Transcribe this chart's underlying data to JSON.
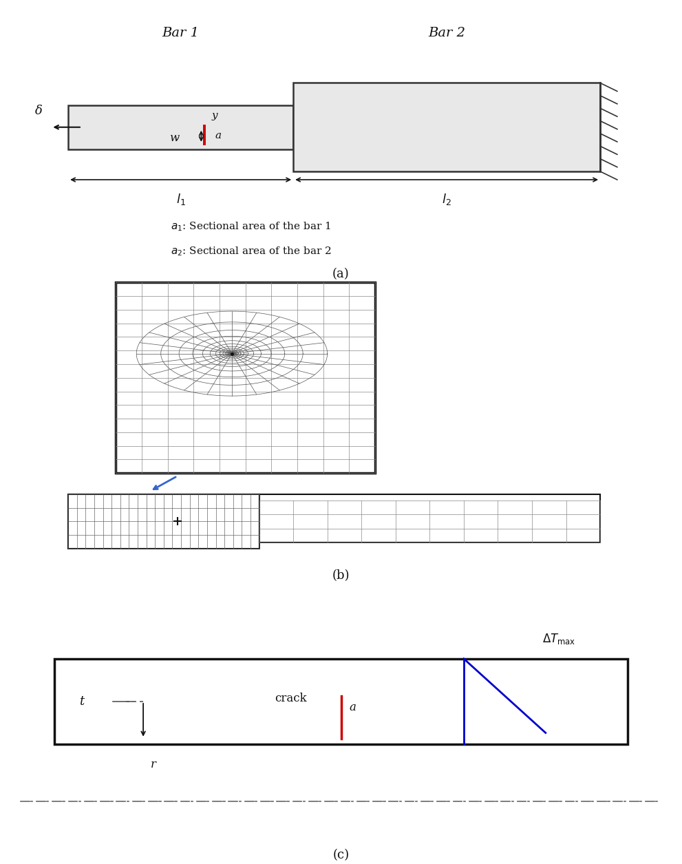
{
  "bg_color": "#ffffff",
  "fig_width": 9.91,
  "fig_height": 12.55,
  "panel_a": {
    "bar1_label": "Bar 1",
    "bar2_label": "Bar 2",
    "caption": "(a)",
    "crack_color": "#cc0000",
    "bar_edge_color": "#333333",
    "delta_label": "δ"
  },
  "panel_b": {
    "caption": "(b)",
    "mesh_color": "#555555",
    "arrow_color": "#3366cc",
    "bar_edge_color": "#111111"
  },
  "panel_c": {
    "caption": "(c)",
    "crack_color": "#cc0000",
    "deltaTmax_color": "#0000cc",
    "pipe_edge_color": "#111111",
    "centerline_color": "#555555"
  }
}
